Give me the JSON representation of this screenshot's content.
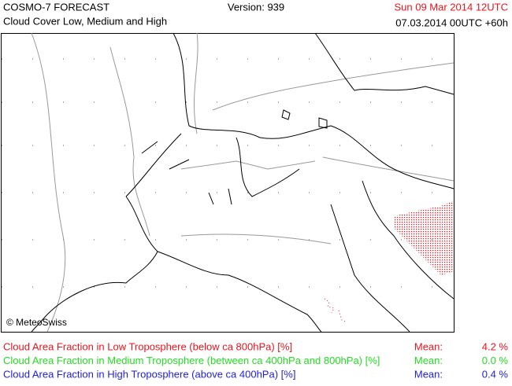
{
  "header": {
    "model": "COSMO-7 FORECAST",
    "product": "Cloud Cover Low, Medium and High",
    "version": "Version: 939",
    "valid_time": "Sun 09 Mar 2014 12UTC",
    "run": "07.03.2014 00UTC +60h"
  },
  "map": {
    "credit": "© MeteoSwiss"
  },
  "legend": [
    {
      "label": "Cloud Area Fraction in Low Troposphere (below ca 800hPa) [%]",
      "mean_label": "Mean:",
      "mean": "4.2 %",
      "color": "#e8141e"
    },
    {
      "label": "Cloud Area Fraction in Medium Troposphere (between ca 400hPa and 800hPa) [%]",
      "mean_label": "Mean:",
      "mean": "0.0 %",
      "color": "#22dd22"
    },
    {
      "label": "Cloud Area Fraction in High Troposphere (above ca 400hPa) [%]",
      "mean_label": "Mean:",
      "mean": "0.4 %",
      "color": "#1e1ee0"
    }
  ]
}
